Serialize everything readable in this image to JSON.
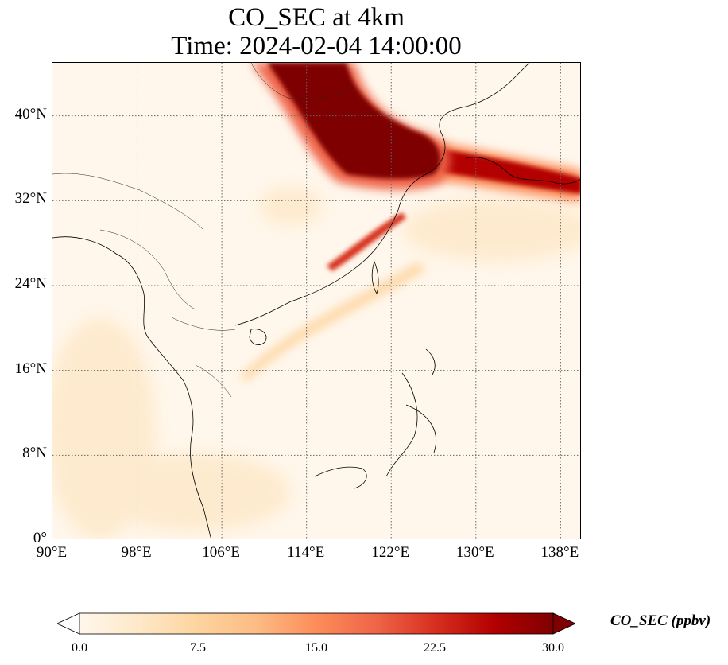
{
  "title": {
    "line1": "CO_SEC at 4km",
    "line2": "Time: 2024-02-04 14:00:00"
  },
  "map": {
    "projection": "PlateCarree",
    "lon_range": [
      90,
      140
    ],
    "lat_range": [
      0,
      45
    ],
    "gridlines": "dotted",
    "lat_ticks": [
      {
        "value": 0,
        "label": "0°"
      },
      {
        "value": 8,
        "label": "8°N"
      },
      {
        "value": 16,
        "label": "16°N"
      },
      {
        "value": 24,
        "label": "24°N"
      },
      {
        "value": 32,
        "label": "32°N"
      },
      {
        "value": 40,
        "label": "40°N"
      }
    ],
    "lon_ticks": [
      {
        "value": 90,
        "label": "90°E"
      },
      {
        "value": 98,
        "label": "98°E"
      },
      {
        "value": 106,
        "label": "106°E"
      },
      {
        "value": 114,
        "label": "114°E"
      },
      {
        "value": 122,
        "label": "122°E"
      },
      {
        "value": 130,
        "label": "130°E"
      },
      {
        "value": 138,
        "label": "138°E"
      }
    ],
    "background_color": "#fff7ec",
    "features": [
      {
        "name": "main-plume-northern-china",
        "peak_value": 30
      },
      {
        "name": "plume-over-east-sea-to-japan",
        "peak_value": 30
      },
      {
        "name": "narrow-band-taiwan-strait",
        "peak_value": 22
      },
      {
        "name": "light-streak-south-china-sea",
        "peak_value": 6
      }
    ]
  },
  "colorbar": {
    "label": "CO_SEC (ppbv)",
    "colormap": "OrRd",
    "vmin": 0,
    "vmax": 30,
    "extend": "both",
    "colors": [
      "#fff7ec",
      "#fee8c8",
      "#fdd49e",
      "#fdbb84",
      "#fc8d59",
      "#ef6548",
      "#d7301f",
      "#b30000",
      "#7f0000"
    ],
    "ticks": [
      {
        "value": 0,
        "label": "0.0"
      },
      {
        "value": 7.5,
        "label": "7.5"
      },
      {
        "value": 15,
        "label": "15.0"
      },
      {
        "value": 22.5,
        "label": "22.5"
      },
      {
        "value": 30,
        "label": "30.0"
      }
    ]
  }
}
